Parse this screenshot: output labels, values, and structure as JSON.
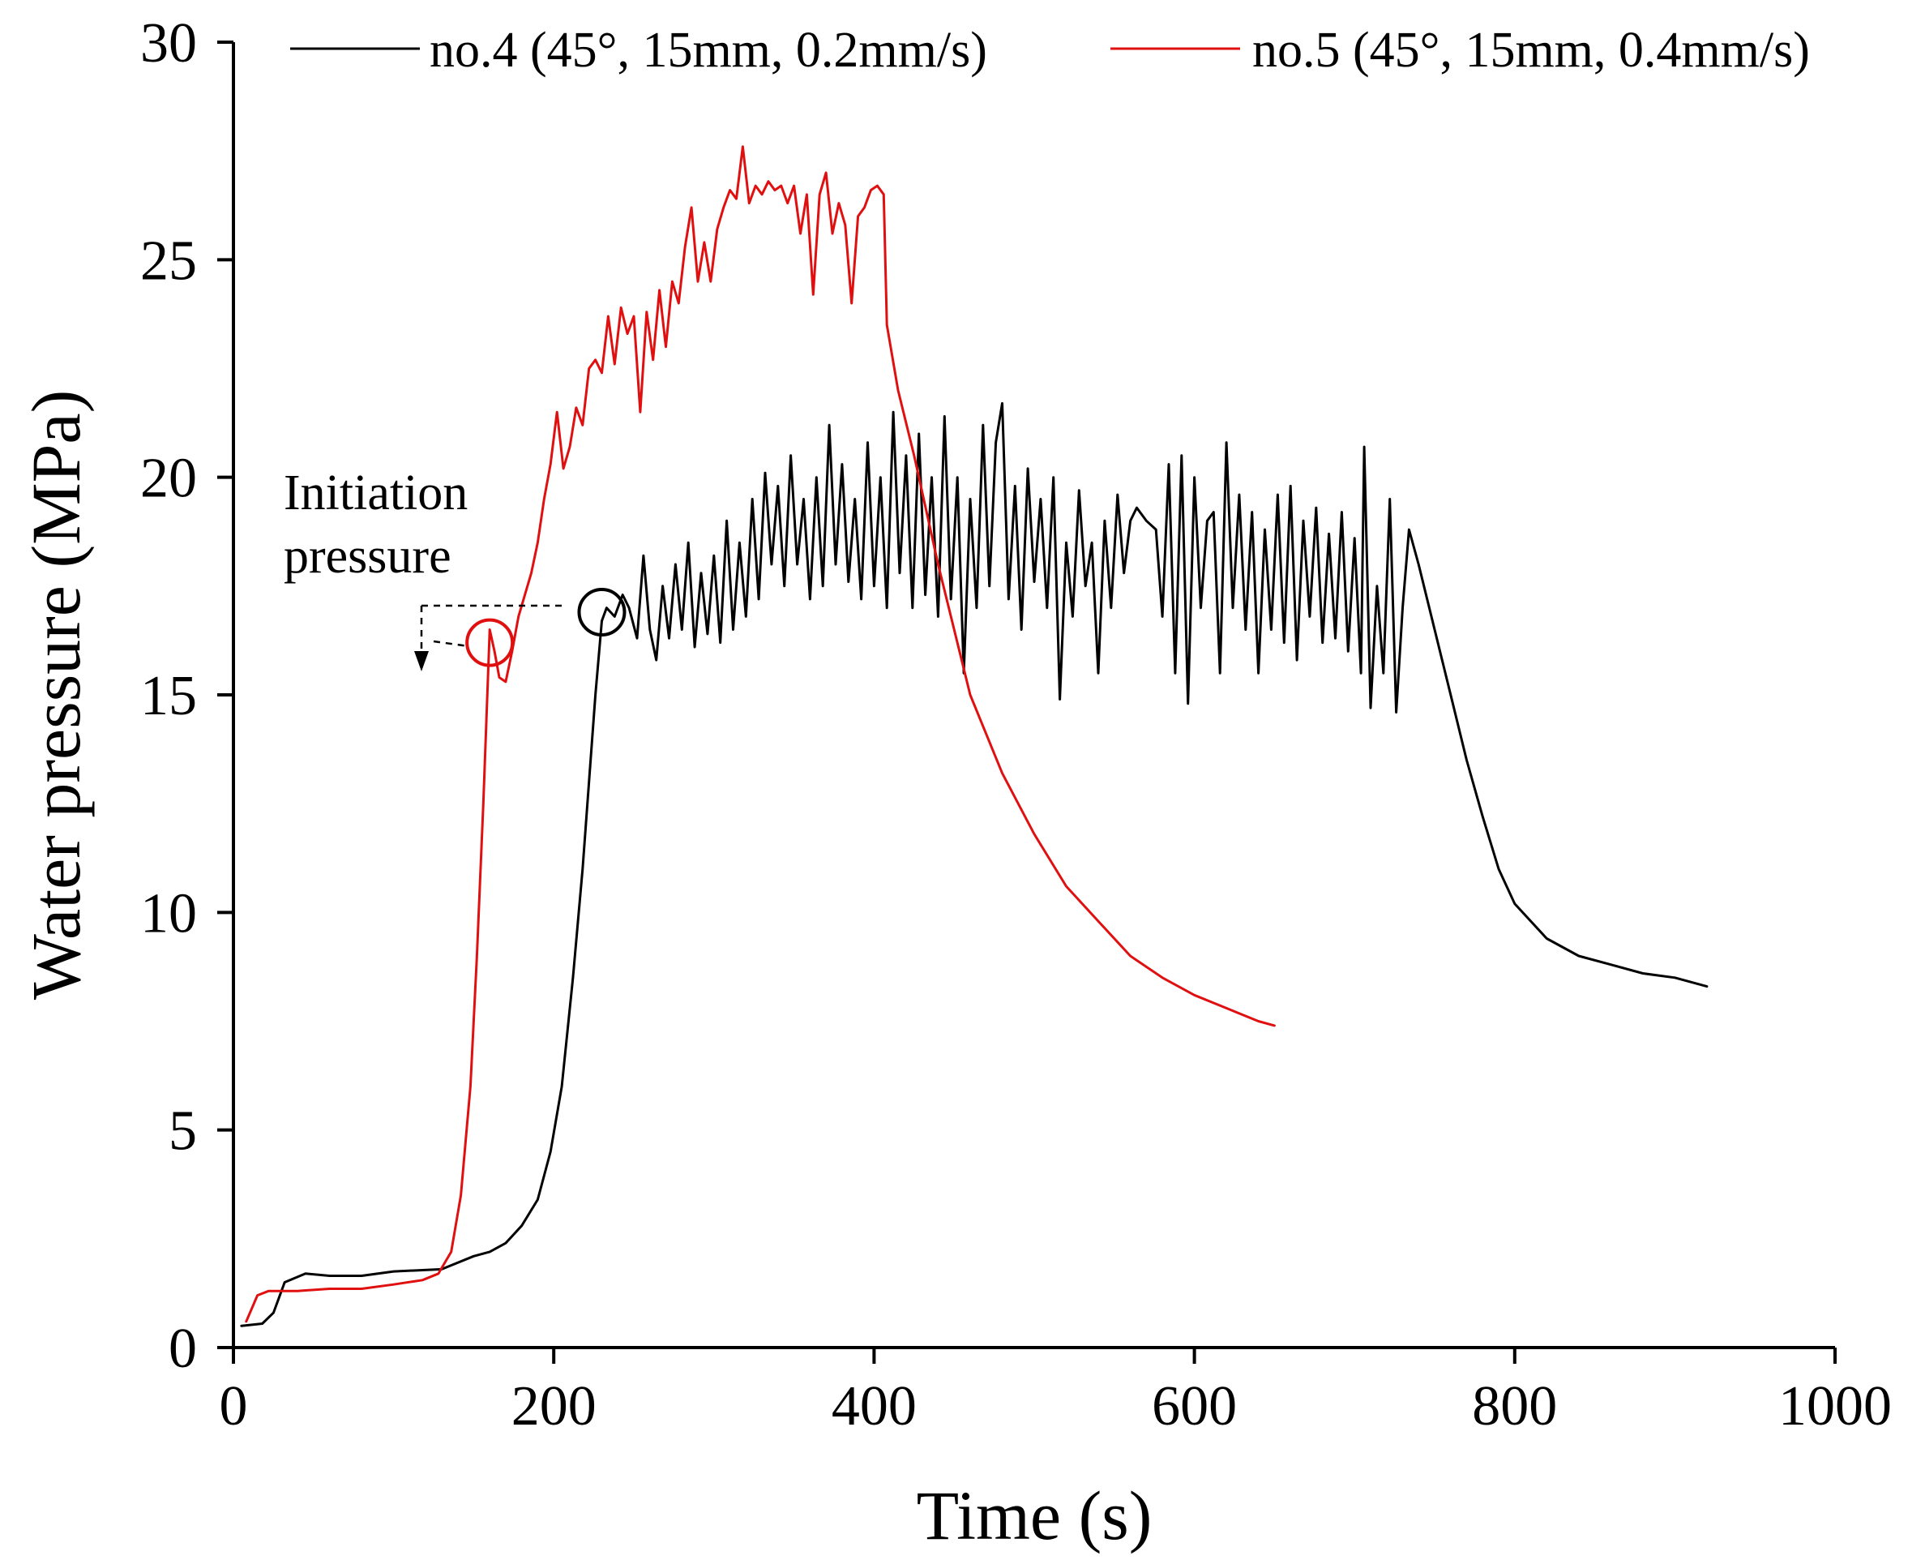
{
  "chart_data": {
    "type": "line",
    "title": "",
    "xlabel": "Time (s)",
    "ylabel": "Water pressure (MPa)",
    "xlim": [
      0,
      1000
    ],
    "ylim": [
      0,
      30
    ],
    "xticks": [
      0,
      200,
      400,
      600,
      800,
      1000
    ],
    "yticks": [
      0,
      5,
      10,
      15,
      20,
      25,
      30
    ],
    "grid": false,
    "legend_position": "top",
    "series": [
      {
        "name": "no.4 (45°, 15mm, 0.2mm/s)",
        "color": "#000000",
        "points": [
          [
            5,
            0.5
          ],
          [
            18,
            0.55
          ],
          [
            25,
            0.8
          ],
          [
            32,
            1.5
          ],
          [
            45,
            1.7
          ],
          [
            60,
            1.65
          ],
          [
            80,
            1.65
          ],
          [
            100,
            1.75
          ],
          [
            130,
            1.8
          ],
          [
            150,
            2.1
          ],
          [
            160,
            2.2
          ],
          [
            170,
            2.4
          ],
          [
            180,
            2.8
          ],
          [
            190,
            3.4
          ],
          [
            198,
            4.5
          ],
          [
            205,
            6.0
          ],
          [
            212,
            8.5
          ],
          [
            218,
            11.0
          ],
          [
            222,
            13.0
          ],
          [
            226,
            15.0
          ],
          [
            230,
            16.7
          ],
          [
            233,
            17.0
          ],
          [
            238,
            16.8
          ],
          [
            243,
            17.3
          ],
          [
            247,
            17.0
          ],
          [
            252,
            16.3
          ],
          [
            256,
            18.2
          ],
          [
            260,
            16.5
          ],
          [
            264,
            15.8
          ],
          [
            268,
            17.5
          ],
          [
            272,
            16.3
          ],
          [
            276,
            18.0
          ],
          [
            280,
            16.5
          ],
          [
            284,
            18.5
          ],
          [
            288,
            16.1
          ],
          [
            292,
            17.8
          ],
          [
            296,
            16.4
          ],
          [
            300,
            18.2
          ],
          [
            304,
            16.2
          ],
          [
            308,
            19.0
          ],
          [
            312,
            16.5
          ],
          [
            316,
            18.5
          ],
          [
            320,
            16.8
          ],
          [
            324,
            19.5
          ],
          [
            328,
            17.2
          ],
          [
            332,
            20.1
          ],
          [
            336,
            18.0
          ],
          [
            340,
            19.8
          ],
          [
            344,
            17.5
          ],
          [
            348,
            20.5
          ],
          [
            352,
            18.0
          ],
          [
            356,
            19.5
          ],
          [
            360,
            17.2
          ],
          [
            364,
            20.0
          ],
          [
            368,
            17.5
          ],
          [
            372,
            21.2
          ],
          [
            376,
            18.0
          ],
          [
            380,
            20.3
          ],
          [
            384,
            17.6
          ],
          [
            388,
            19.5
          ],
          [
            392,
            17.2
          ],
          [
            396,
            20.8
          ],
          [
            400,
            17.5
          ],
          [
            404,
            20.0
          ],
          [
            408,
            17.0
          ],
          [
            412,
            21.5
          ],
          [
            416,
            17.8
          ],
          [
            420,
            20.5
          ],
          [
            424,
            17.0
          ],
          [
            428,
            21.0
          ],
          [
            432,
            17.3
          ],
          [
            436,
            20.0
          ],
          [
            440,
            16.8
          ],
          [
            444,
            21.4
          ],
          [
            448,
            17.2
          ],
          [
            452,
            20.0
          ],
          [
            456,
            15.5
          ],
          [
            460,
            19.5
          ],
          [
            464,
            17.0
          ],
          [
            468,
            21.2
          ],
          [
            472,
            17.5
          ],
          [
            476,
            20.8
          ],
          [
            480,
            21.7
          ],
          [
            484,
            17.2
          ],
          [
            488,
            19.8
          ],
          [
            492,
            16.5
          ],
          [
            496,
            20.2
          ],
          [
            500,
            17.6
          ],
          [
            504,
            19.5
          ],
          [
            508,
            17.0
          ],
          [
            512,
            20.0
          ],
          [
            516,
            14.9
          ],
          [
            520,
            18.5
          ],
          [
            524,
            16.8
          ],
          [
            528,
            19.7
          ],
          [
            532,
            17.5
          ],
          [
            536,
            18.5
          ],
          [
            540,
            15.5
          ],
          [
            544,
            19.0
          ],
          [
            548,
            17.0
          ],
          [
            552,
            19.6
          ],
          [
            556,
            17.8
          ],
          [
            560,
            19.0
          ],
          [
            564,
            19.3
          ],
          [
            570,
            19.0
          ],
          [
            576,
            18.8
          ],
          [
            580,
            16.8
          ],
          [
            584,
            20.3
          ],
          [
            588,
            15.5
          ],
          [
            592,
            20.5
          ],
          [
            596,
            14.8
          ],
          [
            600,
            20.0
          ],
          [
            604,
            17.0
          ],
          [
            608,
            19.0
          ],
          [
            612,
            19.2
          ],
          [
            616,
            15.5
          ],
          [
            620,
            20.8
          ],
          [
            624,
            17.0
          ],
          [
            628,
            19.6
          ],
          [
            632,
            16.5
          ],
          [
            636,
            19.2
          ],
          [
            640,
            15.5
          ],
          [
            644,
            18.8
          ],
          [
            648,
            16.5
          ],
          [
            652,
            19.6
          ],
          [
            656,
            16.2
          ],
          [
            660,
            19.8
          ],
          [
            664,
            15.8
          ],
          [
            668,
            19.0
          ],
          [
            672,
            16.8
          ],
          [
            676,
            19.3
          ],
          [
            680,
            16.2
          ],
          [
            684,
            18.7
          ],
          [
            688,
            16.3
          ],
          [
            692,
            19.2
          ],
          [
            696,
            16.0
          ],
          [
            700,
            18.6
          ],
          [
            704,
            15.5
          ],
          [
            706,
            20.7
          ],
          [
            710,
            14.7
          ],
          [
            714,
            17.5
          ],
          [
            718,
            15.5
          ],
          [
            722,
            19.5
          ],
          [
            726,
            14.6
          ],
          [
            730,
            17.0
          ],
          [
            734,
            18.8
          ],
          [
            740,
            18.0
          ],
          [
            750,
            16.5
          ],
          [
            760,
            15.0
          ],
          [
            770,
            13.5
          ],
          [
            780,
            12.2
          ],
          [
            790,
            11.0
          ],
          [
            800,
            10.2
          ],
          [
            810,
            9.8
          ],
          [
            820,
            9.4
          ],
          [
            840,
            9.0
          ],
          [
            860,
            8.8
          ],
          [
            880,
            8.6
          ],
          [
            900,
            8.5
          ],
          [
            920,
            8.3
          ]
        ]
      },
      {
        "name": "no.5 (45°, 15mm, 0.4mm/s)",
        "color": "#e01010",
        "points": [
          [
            8,
            0.6
          ],
          [
            15,
            1.2
          ],
          [
            22,
            1.3
          ],
          [
            40,
            1.3
          ],
          [
            60,
            1.35
          ],
          [
            80,
            1.35
          ],
          [
            100,
            1.45
          ],
          [
            118,
            1.55
          ],
          [
            128,
            1.7
          ],
          [
            136,
            2.2
          ],
          [
            142,
            3.5
          ],
          [
            148,
            6.0
          ],
          [
            152,
            9.0
          ],
          [
            156,
            12.5
          ],
          [
            160,
            16.5
          ],
          [
            163,
            16.0
          ],
          [
            166,
            15.4
          ],
          [
            170,
            15.3
          ],
          [
            174,
            16.0
          ],
          [
            178,
            16.8
          ],
          [
            182,
            17.3
          ],
          [
            186,
            17.8
          ],
          [
            190,
            18.5
          ],
          [
            194,
            19.5
          ],
          [
            198,
            20.3
          ],
          [
            202,
            21.5
          ],
          [
            206,
            20.2
          ],
          [
            210,
            20.7
          ],
          [
            214,
            21.6
          ],
          [
            218,
            21.2
          ],
          [
            222,
            22.5
          ],
          [
            226,
            22.7
          ],
          [
            230,
            22.4
          ],
          [
            234,
            23.7
          ],
          [
            238,
            22.6
          ],
          [
            242,
            23.9
          ],
          [
            246,
            23.3
          ],
          [
            250,
            23.7
          ],
          [
            254,
            21.5
          ],
          [
            258,
            23.8
          ],
          [
            262,
            22.7
          ],
          [
            266,
            24.3
          ],
          [
            270,
            23.0
          ],
          [
            274,
            24.5
          ],
          [
            278,
            24.0
          ],
          [
            282,
            25.3
          ],
          [
            286,
            26.2
          ],
          [
            290,
            24.5
          ],
          [
            294,
            25.4
          ],
          [
            298,
            24.5
          ],
          [
            302,
            25.7
          ],
          [
            306,
            26.2
          ],
          [
            310,
            26.6
          ],
          [
            314,
            26.4
          ],
          [
            318,
            27.6
          ],
          [
            322,
            26.3
          ],
          [
            326,
            26.7
          ],
          [
            330,
            26.5
          ],
          [
            334,
            26.8
          ],
          [
            338,
            26.6
          ],
          [
            342,
            26.7
          ],
          [
            346,
            26.3
          ],
          [
            350,
            26.7
          ],
          [
            354,
            25.6
          ],
          [
            358,
            26.5
          ],
          [
            362,
            24.2
          ],
          [
            366,
            26.5
          ],
          [
            370,
            27.0
          ],
          [
            374,
            25.6
          ],
          [
            378,
            26.3
          ],
          [
            382,
            25.8
          ],
          [
            386,
            24.0
          ],
          [
            390,
            26.0
          ],
          [
            394,
            26.2
          ],
          [
            398,
            26.6
          ],
          [
            402,
            26.7
          ],
          [
            406,
            26.5
          ],
          [
            408,
            23.5
          ],
          [
            415,
            22.0
          ],
          [
            425,
            20.5
          ],
          [
            440,
            18.0
          ],
          [
            460,
            15.0
          ],
          [
            480,
            13.2
          ],
          [
            500,
            11.8
          ],
          [
            520,
            10.6
          ],
          [
            540,
            9.8
          ],
          [
            560,
            9.0
          ],
          [
            580,
            8.5
          ],
          [
            600,
            8.1
          ],
          [
            620,
            7.8
          ],
          [
            640,
            7.5
          ],
          [
            650,
            7.4
          ]
        ]
      }
    ],
    "markers": [
      {
        "series": "no.4 (45°, 15mm, 0.2mm/s)",
        "x": 230,
        "y": 16.9,
        "shape": "circle"
      },
      {
        "series": "no.5 (45°, 15mm, 0.4mm/s)",
        "x": 160,
        "y": 16.2,
        "shape": "circle"
      }
    ],
    "annotations": [
      {
        "text_lines": [
          "Initiation",
          "pressure"
        ],
        "x": 115,
        "y": 19.6
      }
    ]
  }
}
